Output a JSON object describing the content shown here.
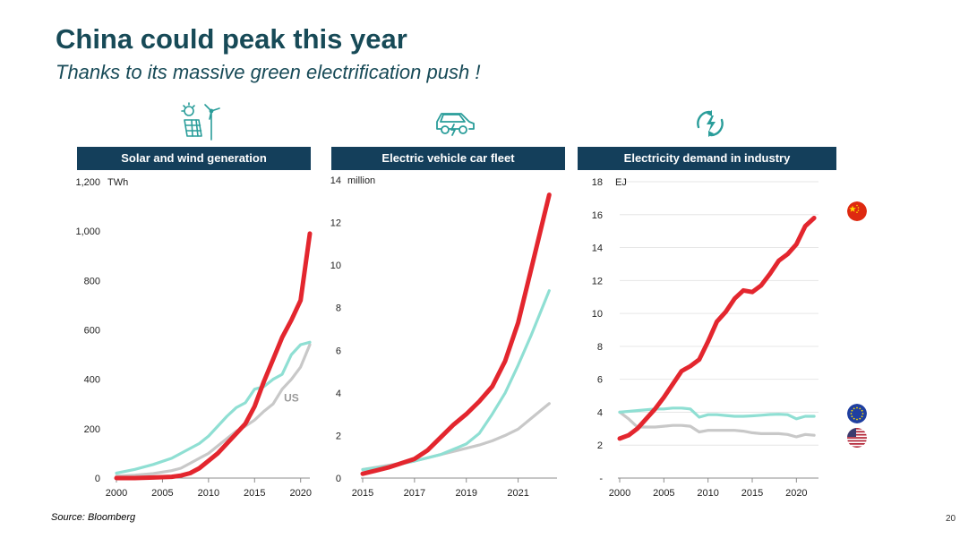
{
  "slide": {
    "title": "China could peak this year",
    "subtitle": "Thanks to its massive green electrification push !",
    "source": "Source: Bloomberg",
    "page_number": "20"
  },
  "colors": {
    "china": "#e3262e",
    "eu": "#8fdfd3",
    "us": "#c8c8c8",
    "header_bg": "#143f5b",
    "title": "#174a57",
    "icon": "#2a9d9a"
  },
  "flags": [
    {
      "region": "China",
      "icon": "china-flag-icon"
    },
    {
      "region": "EU",
      "icon": "eu-flag-icon"
    },
    {
      "region": "US",
      "icon": "us-flag-icon"
    }
  ],
  "chart_data": [
    {
      "type": "line",
      "title": "Solar and wind generation",
      "icon": "solar-wind-icon",
      "unit_label": "TWh",
      "xlim": [
        2000,
        2021
      ],
      "ylim": [
        0,
        1200
      ],
      "xticks": [
        {
          "v": 2000,
          "l": "2000"
        },
        {
          "v": 2005,
          "l": "2005"
        },
        {
          "v": 2010,
          "l": "2010"
        },
        {
          "v": 2015,
          "l": "2015"
        },
        {
          "v": 2020,
          "l": "2020"
        }
      ],
      "yticks": [
        {
          "v": 0,
          "l": "0"
        },
        {
          "v": 200,
          "l": "200"
        },
        {
          "v": 400,
          "l": "400"
        },
        {
          "v": 600,
          "l": "600"
        },
        {
          "v": 800,
          "l": "800"
        },
        {
          "v": 1000,
          "l": "1,000"
        },
        {
          "v": 1200,
          "l": "1,200"
        }
      ],
      "annotations": [
        {
          "text": "US",
          "x": 2019,
          "y": 310
        }
      ],
      "series": [
        {
          "key": "china",
          "x": [
            2000,
            2002,
            2004,
            2006,
            2007,
            2008,
            2009,
            2010,
            2011,
            2012,
            2013,
            2014,
            2015,
            2016,
            2017,
            2018,
            2019,
            2020,
            2021
          ],
          "y": [
            0,
            0,
            2,
            5,
            10,
            20,
            40,
            70,
            100,
            140,
            180,
            220,
            290,
            390,
            480,
            570,
            640,
            720,
            990
          ]
        },
        {
          "key": "eu",
          "x": [
            2000,
            2002,
            2004,
            2006,
            2007,
            2008,
            2009,
            2010,
            2011,
            2012,
            2013,
            2014,
            2015,
            2016,
            2017,
            2018,
            2019,
            2020,
            2021
          ],
          "y": [
            20,
            35,
            55,
            80,
            100,
            120,
            140,
            170,
            210,
            250,
            285,
            305,
            360,
            370,
            400,
            420,
            500,
            540,
            550
          ]
        },
        {
          "key": "us",
          "x": [
            2000,
            2002,
            2004,
            2006,
            2007,
            2008,
            2009,
            2010,
            2011,
            2012,
            2013,
            2014,
            2015,
            2016,
            2017,
            2018,
            2019,
            2020,
            2021
          ],
          "y": [
            8,
            12,
            18,
            30,
            40,
            60,
            80,
            100,
            130,
            160,
            190,
            210,
            235,
            270,
            300,
            360,
            400,
            450,
            540
          ]
        }
      ]
    },
    {
      "type": "line",
      "title": "Electric vehicle car fleet",
      "icon": "electric-car-icon",
      "unit_label": "million",
      "xlim": [
        2015,
        2022.5
      ],
      "ylim": [
        0,
        14
      ],
      "xticks": [
        {
          "v": 2015,
          "l": "2015"
        },
        {
          "v": 2017,
          "l": "2017"
        },
        {
          "v": 2019,
          "l": "2019"
        },
        {
          "v": 2021,
          "l": "2021"
        }
      ],
      "yticks": [
        {
          "v": 0,
          "l": "0"
        },
        {
          "v": 2,
          "l": "2"
        },
        {
          "v": 4,
          "l": "4"
        },
        {
          "v": 6,
          "l": "6"
        },
        {
          "v": 8,
          "l": "8"
        },
        {
          "v": 10,
          "l": "10"
        },
        {
          "v": 12,
          "l": "12"
        },
        {
          "v": 14,
          "l": "14"
        }
      ],
      "annotations": [],
      "series": [
        {
          "key": "china",
          "x": [
            2015,
            2015.5,
            2016,
            2016.5,
            2017,
            2017.5,
            2018,
            2018.5,
            2019,
            2019.5,
            2020,
            2020.5,
            2021,
            2021.5,
            2022,
            2022.2
          ],
          "y": [
            0.2,
            0.35,
            0.5,
            0.7,
            0.9,
            1.3,
            1.9,
            2.5,
            3.0,
            3.6,
            4.3,
            5.5,
            7.3,
            9.8,
            12.3,
            13.3
          ]
        },
        {
          "key": "eu",
          "x": [
            2015,
            2016,
            2017,
            2018,
            2018.5,
            2019,
            2019.5,
            2020,
            2020.5,
            2021,
            2021.5,
            2022,
            2022.2
          ],
          "y": [
            0.4,
            0.55,
            0.8,
            1.1,
            1.35,
            1.6,
            2.1,
            3.0,
            4.0,
            5.3,
            6.7,
            8.2,
            8.8
          ]
        },
        {
          "key": "us",
          "x": [
            2015,
            2016,
            2017,
            2018,
            2019,
            2019.5,
            2020,
            2020.5,
            2021,
            2021.5,
            2022,
            2022.2
          ],
          "y": [
            0.4,
            0.6,
            0.8,
            1.1,
            1.4,
            1.55,
            1.75,
            2.0,
            2.3,
            2.8,
            3.3,
            3.5
          ]
        }
      ]
    },
    {
      "type": "line",
      "title": "Electricity demand in industry",
      "icon": "power-cycle-icon",
      "unit_label": "EJ",
      "xlim": [
        2000,
        2022.5
      ],
      "ylim": [
        0,
        18
      ],
      "xticks": [
        {
          "v": 2000,
          "l": "2000"
        },
        {
          "v": 2005,
          "l": "2005"
        },
        {
          "v": 2010,
          "l": "2010"
        },
        {
          "v": 2015,
          "l": "2015"
        },
        {
          "v": 2020,
          "l": "2020"
        }
      ],
      "yticks": [
        {
          "v": 0,
          "l": "-"
        },
        {
          "v": 2,
          "l": "2"
        },
        {
          "v": 4,
          "l": "4"
        },
        {
          "v": 6,
          "l": "6"
        },
        {
          "v": 8,
          "l": "8"
        },
        {
          "v": 10,
          "l": "10"
        },
        {
          "v": 12,
          "l": "12"
        },
        {
          "v": 14,
          "l": "14"
        },
        {
          "v": 16,
          "l": "16"
        },
        {
          "v": 18,
          "l": "18"
        }
      ],
      "annotations": [],
      "series": [
        {
          "key": "china",
          "x": [
            2000,
            2001,
            2002,
            2003,
            2004,
            2005,
            2006,
            2007,
            2008,
            2009,
            2010,
            2011,
            2012,
            2013,
            2014,
            2015,
            2016,
            2017,
            2018,
            2019,
            2020,
            2021,
            2022
          ],
          "y": [
            2.4,
            2.6,
            3.0,
            3.6,
            4.2,
            4.9,
            5.7,
            6.5,
            6.8,
            7.2,
            8.3,
            9.5,
            10.1,
            10.9,
            11.4,
            11.3,
            11.7,
            12.4,
            13.2,
            13.6,
            14.2,
            15.3,
            15.8
          ]
        },
        {
          "key": "eu",
          "x": [
            2000,
            2002,
            2004,
            2005,
            2006,
            2007,
            2008,
            2009,
            2010,
            2011,
            2012,
            2013,
            2014,
            2015,
            2016,
            2017,
            2018,
            2019,
            2020,
            2021,
            2022
          ],
          "y": [
            4.0,
            4.1,
            4.2,
            4.2,
            4.25,
            4.25,
            4.2,
            3.7,
            3.85,
            3.85,
            3.8,
            3.75,
            3.75,
            3.78,
            3.82,
            3.86,
            3.88,
            3.85,
            3.6,
            3.75,
            3.75
          ]
        },
        {
          "key": "us",
          "x": [
            2000,
            2001,
            2002,
            2003,
            2004,
            2005,
            2006,
            2007,
            2008,
            2009,
            2010,
            2011,
            2012,
            2013,
            2014,
            2015,
            2016,
            2017,
            2018,
            2019,
            2020,
            2021,
            2022
          ],
          "y": [
            4.0,
            3.6,
            3.1,
            3.1,
            3.1,
            3.15,
            3.2,
            3.2,
            3.15,
            2.8,
            2.9,
            2.9,
            2.9,
            2.9,
            2.85,
            2.75,
            2.7,
            2.7,
            2.7,
            2.65,
            2.5,
            2.65,
            2.6
          ]
        }
      ]
    }
  ]
}
